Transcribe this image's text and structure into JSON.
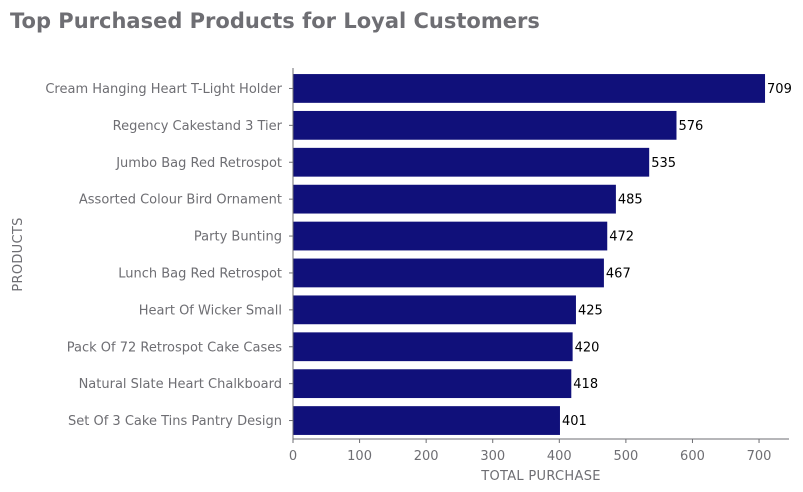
{
  "chart_data": {
    "type": "bar",
    "orientation": "horizontal",
    "title": "Top Purchased Products for Loyal Customers",
    "xlabel": "TOTAL PURCHASE",
    "ylabel": "PRODUCTS",
    "categories": [
      "Cream Hanging Heart T-Light Holder",
      "Regency Cakestand 3 Tier",
      "Jumbo Bag Red Retrospot",
      "Assorted Colour Bird Ornament",
      "Party Bunting",
      "Lunch Bag Red Retrospot",
      "Heart Of Wicker Small",
      "Pack Of 72 Retrospot Cake Cases",
      "Natural Slate Heart Chalkboard",
      "Set Of 3 Cake Tins Pantry Design"
    ],
    "values": [
      709,
      576,
      535,
      485,
      472,
      467,
      425,
      420,
      418,
      401
    ],
    "xlim": [
      0,
      745
    ],
    "xticks": [
      0,
      100,
      200,
      300,
      400,
      500,
      600,
      700
    ],
    "grid": false,
    "bar_color": "#10107a"
  }
}
